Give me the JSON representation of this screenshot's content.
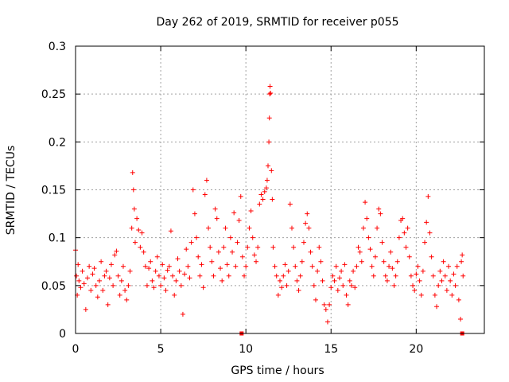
{
  "chart_data": {
    "type": "scatter",
    "title": "Day 262 of 2019, SRMTID for receiver p055",
    "xlabel": "GPS time / hours",
    "ylabel": "SRMTID / TECUs",
    "xlim": [
      0,
      24
    ],
    "ylim": [
      0,
      0.3
    ],
    "xticks": [
      0,
      5,
      10,
      15,
      20
    ],
    "xtick_labels": [
      "0",
      "5",
      "10",
      "15",
      "20"
    ],
    "yticks": [
      0,
      0.05,
      0.1,
      0.15,
      0.2,
      0.25,
      0.3
    ],
    "ytick_labels": [
      "0",
      "0.05",
      "0.1",
      "0.15",
      "0.2",
      "0.25",
      "0.3"
    ],
    "grid": true,
    "marker": "plus",
    "series_color": "#ff0000",
    "series": [
      {
        "name": "SRMTID",
        "points": [
          [
            0.0,
            0.087
          ],
          [
            0.05,
            0.06
          ],
          [
            0.1,
            0.04
          ],
          [
            0.15,
            0.072
          ],
          [
            0.2,
            0.055
          ],
          [
            0.3,
            0.048
          ],
          [
            0.4,
            0.065
          ],
          [
            0.5,
            0.052
          ],
          [
            0.6,
            0.025
          ],
          [
            0.7,
            0.058
          ],
          [
            0.8,
            0.07
          ],
          [
            0.9,
            0.045
          ],
          [
            1.0,
            0.062
          ],
          [
            1.1,
            0.068
          ],
          [
            1.2,
            0.05
          ],
          [
            1.3,
            0.038
          ],
          [
            1.4,
            0.055
          ],
          [
            1.5,
            0.075
          ],
          [
            1.6,
            0.045
          ],
          [
            1.7,
            0.06
          ],
          [
            1.8,
            0.065
          ],
          [
            1.9,
            0.03
          ],
          [
            2.0,
            0.058
          ],
          [
            2.1,
            0.072
          ],
          [
            2.2,
            0.05
          ],
          [
            2.3,
            0.082
          ],
          [
            2.4,
            0.086
          ],
          [
            2.5,
            0.06
          ],
          [
            2.6,
            0.04
          ],
          [
            2.7,
            0.055
          ],
          [
            2.8,
            0.07
          ],
          [
            2.9,
            0.045
          ],
          [
            3.0,
            0.035
          ],
          [
            3.1,
            0.05
          ],
          [
            3.2,
            0.065
          ],
          [
            3.3,
            0.11
          ],
          [
            3.35,
            0.168
          ],
          [
            3.4,
            0.15
          ],
          [
            3.45,
            0.13
          ],
          [
            3.5,
            0.095
          ],
          [
            3.6,
            0.12
          ],
          [
            3.7,
            0.108
          ],
          [
            3.8,
            0.09
          ],
          [
            3.9,
            0.105
          ],
          [
            4.0,
            0.085
          ],
          [
            4.1,
            0.07
          ],
          [
            4.2,
            0.05
          ],
          [
            4.3,
            0.068
          ],
          [
            4.4,
            0.075
          ],
          [
            4.5,
            0.055
          ],
          [
            4.6,
            0.048
          ],
          [
            4.7,
            0.065
          ],
          [
            4.8,
            0.08
          ],
          [
            4.9,
            0.06
          ],
          [
            5.0,
            0.05
          ],
          [
            5.1,
            0.072
          ],
          [
            5.2,
            0.058
          ],
          [
            5.3,
            0.045
          ],
          [
            5.4,
            0.066
          ],
          [
            5.5,
            0.07
          ],
          [
            5.6,
            0.107
          ],
          [
            5.7,
            0.06
          ],
          [
            5.8,
            0.04
          ],
          [
            5.9,
            0.055
          ],
          [
            6.0,
            0.078
          ],
          [
            6.1,
            0.065
          ],
          [
            6.2,
            0.05
          ],
          [
            6.3,
            0.02
          ],
          [
            6.4,
            0.062
          ],
          [
            6.5,
            0.088
          ],
          [
            6.6,
            0.07
          ],
          [
            6.7,
            0.058
          ],
          [
            6.8,
            0.095
          ],
          [
            6.9,
            0.15
          ],
          [
            7.0,
            0.125
          ],
          [
            7.1,
            0.1
          ],
          [
            7.2,
            0.08
          ],
          [
            7.3,
            0.06
          ],
          [
            7.4,
            0.072
          ],
          [
            7.5,
            0.048
          ],
          [
            7.6,
            0.145
          ],
          [
            7.7,
            0.16
          ],
          [
            7.8,
            0.11
          ],
          [
            7.9,
            0.09
          ],
          [
            8.0,
            0.075
          ],
          [
            8.1,
            0.06
          ],
          [
            8.2,
            0.13
          ],
          [
            8.3,
            0.12
          ],
          [
            8.4,
            0.085
          ],
          [
            8.5,
            0.068
          ],
          [
            8.6,
            0.055
          ],
          [
            8.7,
            0.09
          ],
          [
            8.8,
            0.11
          ],
          [
            8.9,
            0.072
          ],
          [
            9.0,
            0.06
          ],
          [
            9.1,
            0.1
          ],
          [
            9.2,
            0.085
          ],
          [
            9.3,
            0.126
          ],
          [
            9.4,
            0.07
          ],
          [
            9.5,
            0.095
          ],
          [
            9.6,
            0.118
          ],
          [
            9.7,
            0.143
          ],
          [
            9.8,
            0.08
          ],
          [
            9.9,
            0.06
          ],
          [
            10.0,
            0.07
          ],
          [
            10.1,
            0.09
          ],
          [
            10.2,
            0.11
          ],
          [
            10.3,
            0.128
          ],
          [
            10.4,
            0.1
          ],
          [
            10.5,
            0.082
          ],
          [
            10.6,
            0.075
          ],
          [
            10.7,
            0.09
          ],
          [
            10.8,
            0.135
          ],
          [
            10.9,
            0.145
          ],
          [
            11.0,
            0.14
          ],
          [
            11.1,
            0.148
          ],
          [
            11.2,
            0.152
          ],
          [
            11.25,
            0.16
          ],
          [
            11.3,
            0.175
          ],
          [
            11.35,
            0.2
          ],
          [
            11.38,
            0.225
          ],
          [
            11.4,
            0.25
          ],
          [
            11.42,
            0.258
          ],
          [
            11.45,
            0.251
          ],
          [
            11.5,
            0.17
          ],
          [
            11.55,
            0.14
          ],
          [
            11.6,
            0.09
          ],
          [
            11.7,
            0.07
          ],
          [
            11.8,
            0.06
          ],
          [
            11.9,
            0.04
          ],
          [
            12.0,
            0.055
          ],
          [
            12.1,
            0.048
          ],
          [
            12.2,
            0.06
          ],
          [
            12.3,
            0.072
          ],
          [
            12.4,
            0.05
          ],
          [
            12.5,
            0.065
          ],
          [
            12.6,
            0.135
          ],
          [
            12.7,
            0.11
          ],
          [
            12.8,
            0.09
          ],
          [
            12.9,
            0.07
          ],
          [
            13.0,
            0.055
          ],
          [
            13.1,
            0.045
          ],
          [
            13.2,
            0.06
          ],
          [
            13.3,
            0.075
          ],
          [
            13.4,
            0.095
          ],
          [
            13.5,
            0.115
          ],
          [
            13.6,
            0.125
          ],
          [
            13.7,
            0.11
          ],
          [
            13.8,
            0.085
          ],
          [
            13.9,
            0.07
          ],
          [
            14.0,
            0.05
          ],
          [
            14.1,
            0.035
          ],
          [
            14.2,
            0.065
          ],
          [
            14.3,
            0.09
          ],
          [
            14.4,
            0.075
          ],
          [
            14.5,
            0.055
          ],
          [
            14.6,
            0.03
          ],
          [
            14.7,
            0.025
          ],
          [
            14.8,
            0.012
          ],
          [
            14.9,
            0.03
          ],
          [
            15.0,
            0.048
          ],
          [
            15.1,
            0.06
          ],
          [
            15.2,
            0.055
          ],
          [
            15.3,
            0.07
          ],
          [
            15.4,
            0.045
          ],
          [
            15.5,
            0.058
          ],
          [
            15.6,
            0.065
          ],
          [
            15.7,
            0.05
          ],
          [
            15.8,
            0.072
          ],
          [
            15.9,
            0.04
          ],
          [
            16.0,
            0.03
          ],
          [
            16.1,
            0.055
          ],
          [
            16.2,
            0.05
          ],
          [
            16.3,
            0.065
          ],
          [
            16.4,
            0.048
          ],
          [
            16.5,
            0.07
          ],
          [
            16.6,
            0.09
          ],
          [
            16.7,
            0.085
          ],
          [
            16.8,
            0.075
          ],
          [
            16.9,
            0.11
          ],
          [
            17.0,
            0.137
          ],
          [
            17.1,
            0.12
          ],
          [
            17.2,
            0.1
          ],
          [
            17.3,
            0.088
          ],
          [
            17.4,
            0.07
          ],
          [
            17.5,
            0.06
          ],
          [
            17.6,
            0.08
          ],
          [
            17.7,
            0.11
          ],
          [
            17.8,
            0.13
          ],
          [
            17.9,
            0.125
          ],
          [
            18.0,
            0.095
          ],
          [
            18.1,
            0.075
          ],
          [
            18.2,
            0.06
          ],
          [
            18.3,
            0.055
          ],
          [
            18.4,
            0.07
          ],
          [
            18.5,
            0.085
          ],
          [
            18.6,
            0.068
          ],
          [
            18.7,
            0.05
          ],
          [
            18.8,
            0.06
          ],
          [
            18.9,
            0.075
          ],
          [
            19.0,
            0.1
          ],
          [
            19.1,
            0.118
          ],
          [
            19.2,
            0.12
          ],
          [
            19.3,
            0.105
          ],
          [
            19.4,
            0.09
          ],
          [
            19.5,
            0.11
          ],
          [
            19.6,
            0.08
          ],
          [
            19.7,
            0.06
          ],
          [
            19.8,
            0.05
          ],
          [
            19.9,
            0.045
          ],
          [
            20.0,
            0.062
          ],
          [
            20.1,
            0.07
          ],
          [
            20.2,
            0.055
          ],
          [
            20.3,
            0.04
          ],
          [
            20.4,
            0.065
          ],
          [
            20.5,
            0.095
          ],
          [
            20.6,
            0.116
          ],
          [
            20.7,
            0.143
          ],
          [
            20.8,
            0.105
          ],
          [
            20.9,
            0.08
          ],
          [
            21.0,
            0.06
          ],
          [
            21.1,
            0.04
          ],
          [
            21.2,
            0.028
          ],
          [
            21.3,
            0.05
          ],
          [
            21.4,
            0.065
          ],
          [
            21.5,
            0.055
          ],
          [
            21.6,
            0.075
          ],
          [
            21.7,
            0.06
          ],
          [
            21.8,
            0.045
          ],
          [
            21.9,
            0.07
          ],
          [
            22.0,
            0.055
          ],
          [
            22.1,
            0.04
          ],
          [
            22.2,
            0.062
          ],
          [
            22.3,
            0.05
          ],
          [
            22.4,
            0.07
          ],
          [
            22.5,
            0.035
          ],
          [
            22.6,
            0.015
          ],
          [
            22.65,
            0.075
          ],
          [
            22.7,
            0.082
          ],
          [
            22.75,
            0.06
          ]
        ]
      },
      {
        "name": "zero markers",
        "marker": "square",
        "points": [
          [
            9.75,
            0.0
          ],
          [
            22.7,
            0.0
          ]
        ]
      }
    ]
  }
}
